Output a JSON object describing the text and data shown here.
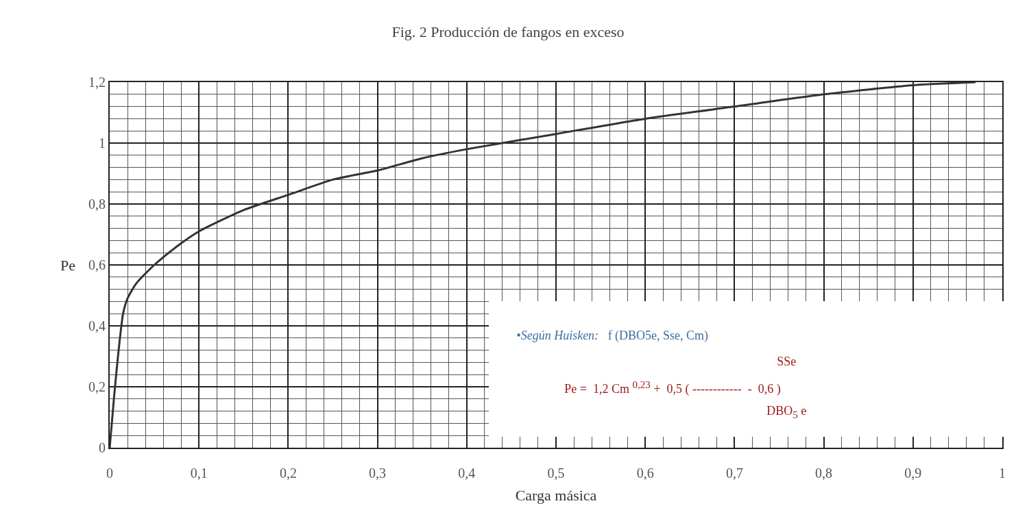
{
  "chart_data": {
    "type": "line",
    "title": "Fig. 2 Producción de fangos en exceso",
    "xlabel": "Carga másica",
    "ylabel": "Pe",
    "x": [
      0,
      0.005,
      0.01,
      0.015,
      0.02,
      0.03,
      0.05,
      0.075,
      0.1,
      0.15,
      0.2,
      0.25,
      0.3,
      0.35,
      0.4,
      0.5,
      0.6,
      0.7,
      0.8,
      0.9,
      0.97
    ],
    "series": [
      {
        "color": "#333333",
        "values": [
          0,
          0.17,
          0.32,
          0.44,
          0.49,
          0.54,
          0.6,
          0.66,
          0.71,
          0.78,
          0.83,
          0.88,
          0.91,
          0.95,
          0.98,
          1.03,
          1.08,
          1.12,
          1.16,
          1.19,
          1.2
        ]
      }
    ],
    "xlim": [
      0,
      1
    ],
    "ylim": [
      0,
      1.2
    ],
    "xticks": [
      0,
      {
        "value": 0.1,
        "label": "0,1"
      },
      {
        "value": 0.2,
        "label": "0,2"
      },
      {
        "value": 0.3,
        "label": "0,3"
      },
      {
        "value": 0.4,
        "label": "0,4"
      },
      {
        "value": 0.5,
        "label": "0,5"
      },
      {
        "value": 0.6,
        "label": "0,6"
      },
      {
        "value": 0.7,
        "label": "0,7"
      },
      {
        "value": 0.8,
        "label": "0,8"
      },
      {
        "value": 0.9,
        "label": "0,9"
      },
      1
    ],
    "yticks": [
      0,
      {
        "value": 0.2,
        "label": "0,2"
      },
      {
        "value": 0.4,
        "label": "0,4"
      },
      {
        "value": 0.6,
        "label": "0,6"
      },
      {
        "value": 0.8,
        "label": "0,8"
      },
      1,
      {
        "value": 1.2,
        "label": "1,2"
      }
    ],
    "grid": true,
    "marker": "none",
    "line_style": "solid",
    "annotations": [
      "•Según Huisken:   f (DBO5e, Sse, Cm)",
      "SSe",
      "Pe =  1,2 Cm $^{0,23}$ +  0,5 ( ------------  -  0,6 )",
      "DBO$_{5}$ e"
    ]
  }
}
